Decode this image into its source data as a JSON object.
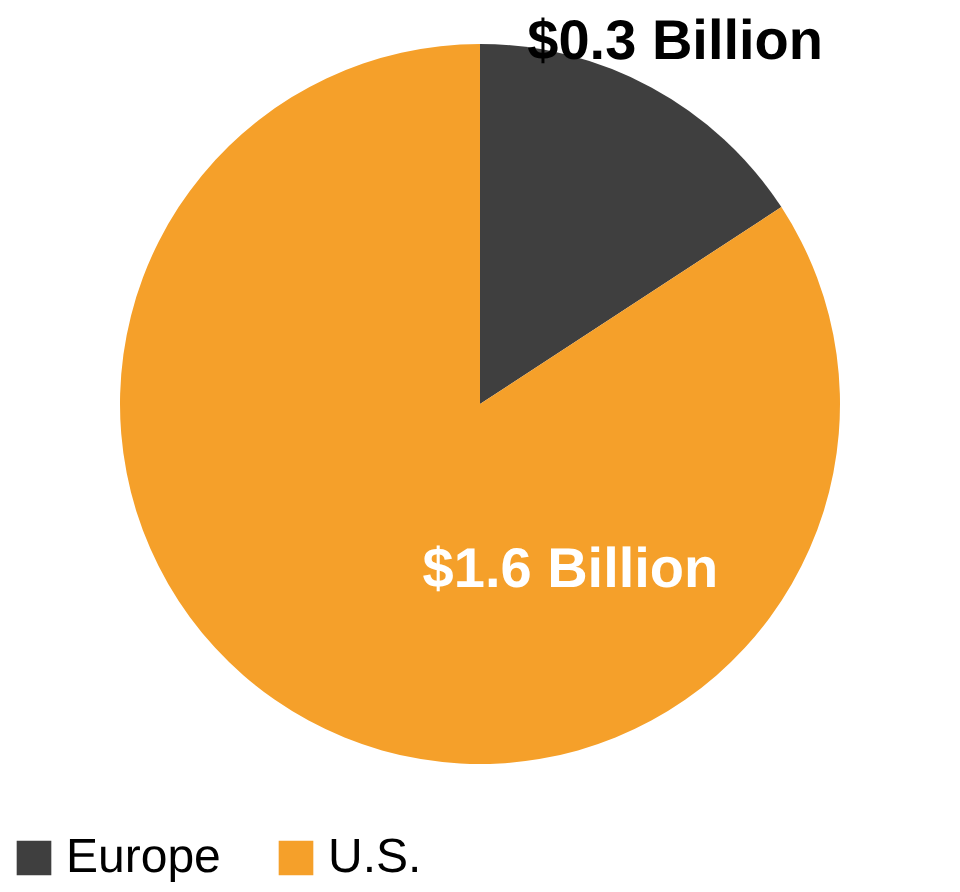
{
  "chart_data": {
    "type": "pie",
    "categories": [
      "Europe",
      "U.S."
    ],
    "values": [
      0.3,
      1.6
    ],
    "colors": [
      "#3f3f3f",
      "#f5a02a"
    ],
    "value_labels": [
      "$0.3 Billion",
      "$1.6 Billion"
    ],
    "legend": "bottom"
  }
}
